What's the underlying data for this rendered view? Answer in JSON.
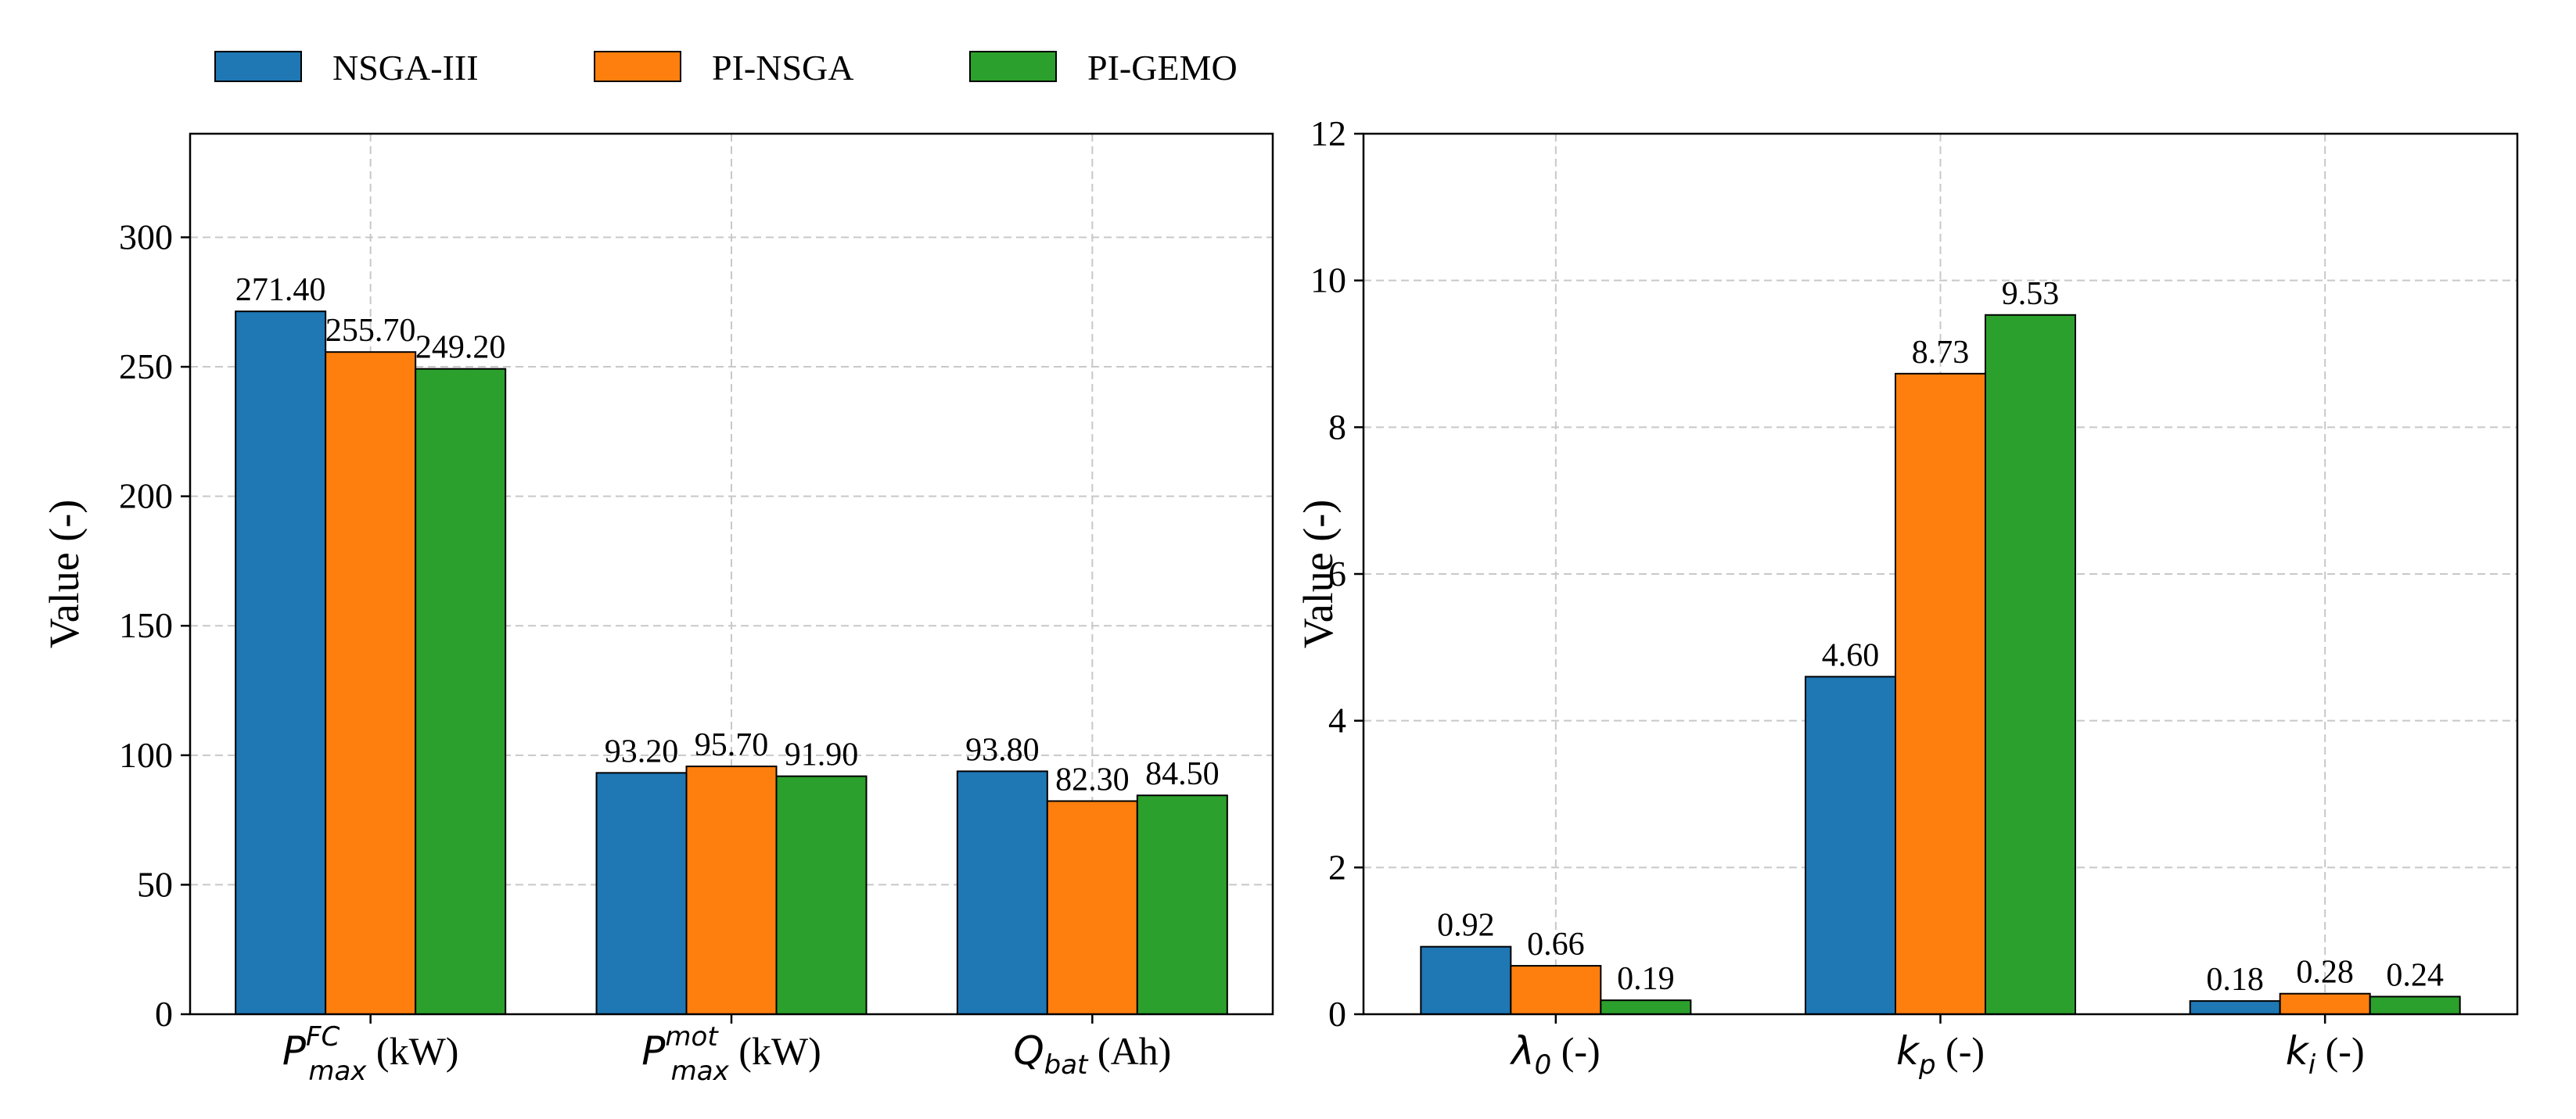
{
  "legend": {
    "placement": "top-left",
    "entries": [
      {
        "label": "NSGA-III",
        "color": "#1f77b4"
      },
      {
        "label": "PI-NSGA",
        "color": "#ff7f0e"
      },
      {
        "label": "PI-GEMO",
        "color": "#2ca02c"
      }
    ]
  },
  "chart_data": [
    {
      "type": "bar",
      "title": "",
      "xlabel": "",
      "ylabel": "Value (-)",
      "ylim": [
        0,
        340
      ],
      "yticks": [
        0,
        50,
        100,
        150,
        200,
        250,
        300
      ],
      "grid": true,
      "categories": [
        {
          "base": "P",
          "sup": "FC",
          "sub": "max",
          "unit": " (kW)"
        },
        {
          "base": "P",
          "sup": "mot",
          "sub": "max",
          "unit": " (kW)"
        },
        {
          "base": "Q",
          "sup": "",
          "sub": "bat",
          "unit": " (Ah)"
        }
      ],
      "series": [
        {
          "name": "NSGA-III",
          "values": [
            271.4,
            93.2,
            93.8
          ],
          "labels": [
            "271.40",
            "93.20",
            "93.80"
          ]
        },
        {
          "name": "PI-NSGA",
          "values": [
            255.7,
            95.7,
            82.3
          ],
          "labels": [
            "255.70",
            "95.70",
            "82.30"
          ]
        },
        {
          "name": "PI-GEMO",
          "values": [
            249.2,
            91.9,
            84.5
          ],
          "labels": [
            "249.20",
            "91.90",
            "84.50"
          ]
        }
      ]
    },
    {
      "type": "bar",
      "title": "",
      "xlabel": "",
      "ylabel": "Value (-)",
      "ylim": [
        0,
        12
      ],
      "yticks": [
        0,
        2,
        4,
        6,
        8,
        10,
        12
      ],
      "grid": true,
      "categories": [
        {
          "base": "λ",
          "sup": "",
          "sub": "0",
          "unit": " (-)"
        },
        {
          "base": "k",
          "sup": "",
          "sub": "p",
          "unit": " (-)"
        },
        {
          "base": "k",
          "sup": "",
          "sub": "i",
          "unit": " (-)"
        }
      ],
      "series": [
        {
          "name": "NSGA-III",
          "values": [
            0.92,
            4.6,
            0.18
          ],
          "labels": [
            "0.92",
            "4.60",
            "0.18"
          ]
        },
        {
          "name": "PI-NSGA",
          "values": [
            0.66,
            8.73,
            0.28
          ],
          "labels": [
            "0.66",
            "8.73",
            "0.28"
          ]
        },
        {
          "name": "PI-GEMO",
          "values": [
            0.19,
            9.53,
            0.24
          ],
          "labels": [
            "0.19",
            "9.53",
            "0.24"
          ]
        }
      ]
    }
  ]
}
